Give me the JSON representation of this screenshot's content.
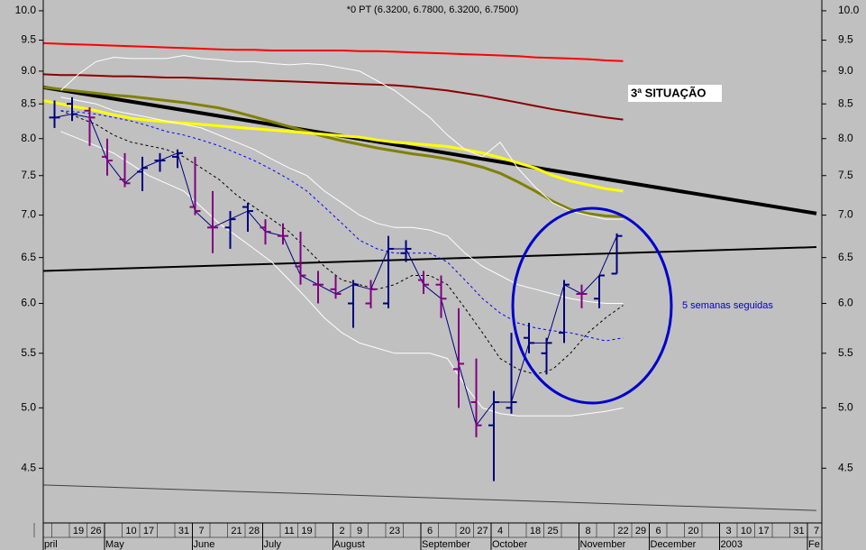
{
  "chart_data": {
    "type": "ohlc",
    "title": "*0 PT (6.3200, 6.7800, 6.3200, 6.7500)",
    "yscale": "log",
    "ylim": [
      4.09,
      10.19
    ],
    "yticks": [
      {
        "value": 10,
        "label": "10.0"
      },
      9.5,
      {
        "value": 9,
        "label": "9.0"
      },
      8.5,
      {
        "value": 8,
        "label": "8.0"
      },
      7.5,
      {
        "value": 7,
        "label": "7.0"
      },
      6.5,
      {
        "value": 6,
        "label": "6.0"
      },
      5.5,
      {
        "value": 5,
        "label": "5.0"
      },
      4.5
    ],
    "categories": [
      null,
      null,
      "19",
      "26",
      null,
      "10",
      "17",
      null,
      "31",
      "7",
      null,
      "21",
      "28",
      null,
      "11",
      "19",
      null,
      "2",
      "9",
      null,
      "23",
      null,
      "6",
      null,
      "20",
      "27",
      "4",
      null,
      "18",
      "25",
      null,
      "8",
      null,
      "22",
      "29",
      "6",
      null,
      "20",
      null,
      "3",
      "10",
      "17",
      null,
      "31",
      "7"
    ],
    "months": [
      "pril",
      null,
      null,
      null,
      "May",
      null,
      null,
      null,
      null,
      "June",
      null,
      null,
      null,
      "July",
      null,
      null,
      null,
      "August",
      null,
      null,
      null,
      null,
      "September",
      null,
      null,
      null,
      "October",
      null,
      null,
      null,
      null,
      "November",
      null,
      null,
      null,
      "December",
      null,
      null,
      null,
      "2003",
      null,
      null,
      null,
      null,
      "Fe"
    ],
    "open": [
      null,
      8.3,
      8.5,
      8.4,
      7.75,
      7.45,
      7.55,
      7.7,
      7.75,
      7.1,
      6.85,
      6.85,
      7.1,
      6.85,
      6.75,
      6.4,
      6.2,
      6.15,
      6.0,
      6.0,
      6.0,
      6.55,
      6.25,
      6.2,
      5.35,
      5.05,
      4.85,
      5.0,
      5.65,
      5.5,
      5.7,
      6.1,
      6.05,
      6.32,
      null,
      null,
      null,
      null,
      null,
      null,
      null,
      null,
      null,
      null,
      null
    ],
    "high": [
      null,
      8.55,
      8.6,
      8.45,
      8.0,
      7.8,
      7.75,
      7.8,
      7.85,
      7.75,
      7.3,
      7.05,
      7.15,
      6.95,
      6.9,
      6.8,
      6.35,
      6.3,
      6.25,
      6.25,
      6.75,
      6.7,
      6.35,
      6.3,
      5.95,
      5.45,
      5.15,
      5.7,
      5.8,
      5.65,
      6.25,
      6.2,
      6.3,
      6.78,
      null,
      null,
      null,
      null,
      null,
      null,
      null,
      null,
      null,
      null,
      null
    ],
    "low": [
      null,
      8.15,
      8.25,
      7.9,
      7.5,
      7.35,
      7.3,
      7.55,
      7.6,
      7.0,
      6.55,
      6.6,
      6.8,
      6.65,
      6.65,
      6.2,
      6.0,
      6.05,
      5.75,
      5.95,
      5.95,
      6.45,
      6.1,
      5.85,
      5.0,
      4.75,
      4.4,
      4.95,
      5.5,
      5.3,
      5.6,
      5.95,
      5.95,
      6.32,
      null,
      null,
      null,
      null,
      null,
      null,
      null,
      null,
      null,
      null,
      null
    ],
    "close": [
      null,
      8.3,
      8.35,
      8.3,
      7.7,
      7.4,
      7.6,
      7.7,
      7.8,
      7.05,
      6.85,
      6.95,
      7.05,
      6.8,
      6.75,
      6.3,
      6.2,
      6.1,
      6.2,
      6.15,
      6.6,
      6.6,
      6.2,
      6.05,
      5.4,
      4.85,
      5.05,
      5.05,
      5.6,
      5.6,
      6.2,
      6.1,
      6.3,
      6.75,
      null,
      null,
      null,
      null,
      null,
      null,
      null,
      null,
      null,
      null,
      null
    ],
    "up_color": "#000080",
    "down_color": "#800080",
    "close_line": {
      "color": "#000080"
    },
    "lines": [
      {
        "color": "#ff0000",
        "width": 2,
        "values": [
          9.45,
          9.44,
          9.43,
          9.42,
          9.41,
          9.4,
          9.39,
          9.38,
          9.37,
          9.36,
          9.35,
          9.34,
          9.34,
          9.33,
          9.33,
          9.33,
          9.33,
          9.33,
          9.32,
          9.32,
          9.31,
          9.3,
          9.29,
          9.28,
          9.27,
          9.26,
          9.25,
          9.24,
          9.22,
          9.21,
          9.2,
          9.19,
          9.17,
          9.16,
          null,
          null,
          null,
          null,
          null,
          null,
          null,
          null,
          null,
          null,
          null
        ]
      },
      {
        "color": "#8b0000",
        "width": 2,
        "values": [
          8.95,
          8.94,
          8.94,
          8.93,
          8.92,
          8.92,
          8.91,
          8.9,
          8.9,
          8.89,
          8.88,
          8.87,
          8.86,
          8.85,
          8.84,
          8.83,
          8.82,
          8.81,
          8.8,
          8.79,
          8.78,
          8.76,
          8.73,
          8.7,
          8.66,
          8.62,
          8.57,
          8.52,
          8.47,
          8.42,
          8.38,
          8.34,
          8.3,
          8.27,
          null,
          null,
          null,
          null,
          null,
          null,
          null,
          null,
          null,
          null,
          null
        ]
      },
      {
        "color": "#808000",
        "width": 3,
        "values": [
          8.75,
          8.72,
          8.69,
          8.66,
          8.63,
          8.61,
          8.58,
          8.55,
          8.52,
          8.48,
          8.44,
          8.38,
          8.31,
          8.24,
          8.17,
          8.1,
          8.03,
          7.97,
          7.92,
          7.87,
          7.83,
          7.79,
          7.76,
          7.72,
          7.67,
          7.61,
          7.53,
          7.42,
          7.3,
          7.17,
          7.07,
          7.02,
          6.99,
          6.98,
          null,
          null,
          null,
          null,
          null,
          null,
          null,
          null,
          null,
          null,
          null
        ]
      },
      {
        "color": "#ffff00",
        "width": 3,
        "values": [
          8.55,
          8.5,
          8.45,
          8.4,
          8.34,
          8.29,
          8.26,
          8.24,
          8.22,
          8.2,
          8.18,
          8.16,
          8.14,
          8.12,
          8.1,
          8.08,
          8.06,
          8.04,
          8.02,
          7.98,
          7.95,
          7.93,
          7.91,
          7.89,
          7.85,
          7.8,
          7.74,
          7.67,
          7.6,
          7.5,
          7.43,
          7.38,
          7.33,
          7.3,
          null,
          null,
          null,
          null,
          null,
          null,
          null,
          null,
          null,
          null,
          null
        ]
      },
      {
        "color": "#ffffff",
        "width": 1,
        "values": [
          null,
          8.7,
          8.95,
          9.15,
          9.22,
          9.2,
          9.2,
          9.2,
          9.25,
          9.2,
          9.18,
          9.15,
          9.15,
          9.12,
          9.1,
          9.12,
          9.1,
          9.05,
          9.0,
          8.85,
          8.7,
          8.5,
          8.3,
          8.05,
          7.85,
          7.75,
          7.95,
          7.6,
          7.35,
          7.15,
          7.05,
          7.0,
          6.95,
          6.95,
          null,
          null,
          null,
          null,
          null,
          null,
          null,
          null,
          null,
          null,
          null
        ]
      },
      {
        "color": "#ffffff",
        "width": 1,
        "values": [
          null,
          8.6,
          8.55,
          8.5,
          8.4,
          8.35,
          8.3,
          8.25,
          8.2,
          8.15,
          8.05,
          7.95,
          7.85,
          7.72,
          7.6,
          7.5,
          7.3,
          7.15,
          7.0,
          6.9,
          6.85,
          6.85,
          6.82,
          6.75,
          6.55,
          6.4,
          6.3,
          6.2,
          6.15,
          6.1,
          6.05,
          6.02,
          6.0,
          6.0,
          null,
          null,
          null,
          null,
          null,
          null,
          null,
          null,
          null,
          null,
          null
        ]
      },
      {
        "color": "#ffffff",
        "width": 1,
        "values": [
          null,
          8.1,
          8.0,
          7.9,
          7.8,
          7.65,
          7.5,
          7.4,
          7.3,
          7.1,
          6.9,
          6.75,
          6.6,
          6.45,
          6.25,
          6.05,
          5.85,
          5.7,
          5.6,
          5.55,
          5.5,
          5.5,
          5.5,
          5.45,
          5.2,
          5.0,
          4.95,
          4.93,
          4.93,
          4.93,
          4.93,
          4.95,
          4.97,
          5.0,
          null,
          null,
          null,
          null,
          null,
          null,
          null,
          null,
          null,
          null,
          null
        ]
      },
      {
        "color": "#000000",
        "width": 1,
        "dash": true,
        "values": [
          null,
          8.4,
          8.3,
          8.2,
          8.05,
          7.95,
          7.9,
          7.85,
          7.75,
          7.6,
          7.45,
          7.25,
          7.1,
          6.95,
          6.8,
          6.6,
          6.4,
          6.25,
          6.2,
          6.15,
          6.2,
          6.3,
          6.3,
          6.2,
          5.95,
          5.7,
          5.45,
          5.35,
          5.3,
          5.35,
          5.5,
          5.7,
          5.85,
          5.98,
          null,
          null,
          null,
          null,
          null,
          null,
          null,
          null,
          null,
          null,
          null
        ]
      },
      {
        "color": "#0000ff",
        "width": 1,
        "dash": true,
        "values": [
          null,
          8.4,
          8.38,
          8.35,
          8.3,
          8.25,
          8.18,
          8.1,
          8.05,
          7.98,
          7.9,
          7.8,
          7.7,
          7.58,
          7.45,
          7.3,
          7.1,
          6.9,
          6.7,
          6.6,
          6.55,
          6.55,
          6.55,
          6.45,
          6.25,
          6.05,
          5.9,
          5.8,
          5.75,
          5.72,
          5.7,
          5.66,
          5.62,
          5.65,
          null,
          null,
          null,
          null,
          null,
          null,
          null,
          null,
          null,
          null,
          null
        ]
      }
    ],
    "trendlines": [
      {
        "color": "#000000",
        "width": 4,
        "values": [
          8.75,
          7.02
        ]
      },
      {
        "color": "#000000",
        "width": 2,
        "values": [
          6.35,
          6.62
        ]
      },
      {
        "color": "#404040",
        "width": 1,
        "values": [
          4.37,
          4.18
        ]
      }
    ],
    "annotations": [
      "3ª SITUAÇÃO",
      "5 semanas seguidas"
    ]
  }
}
